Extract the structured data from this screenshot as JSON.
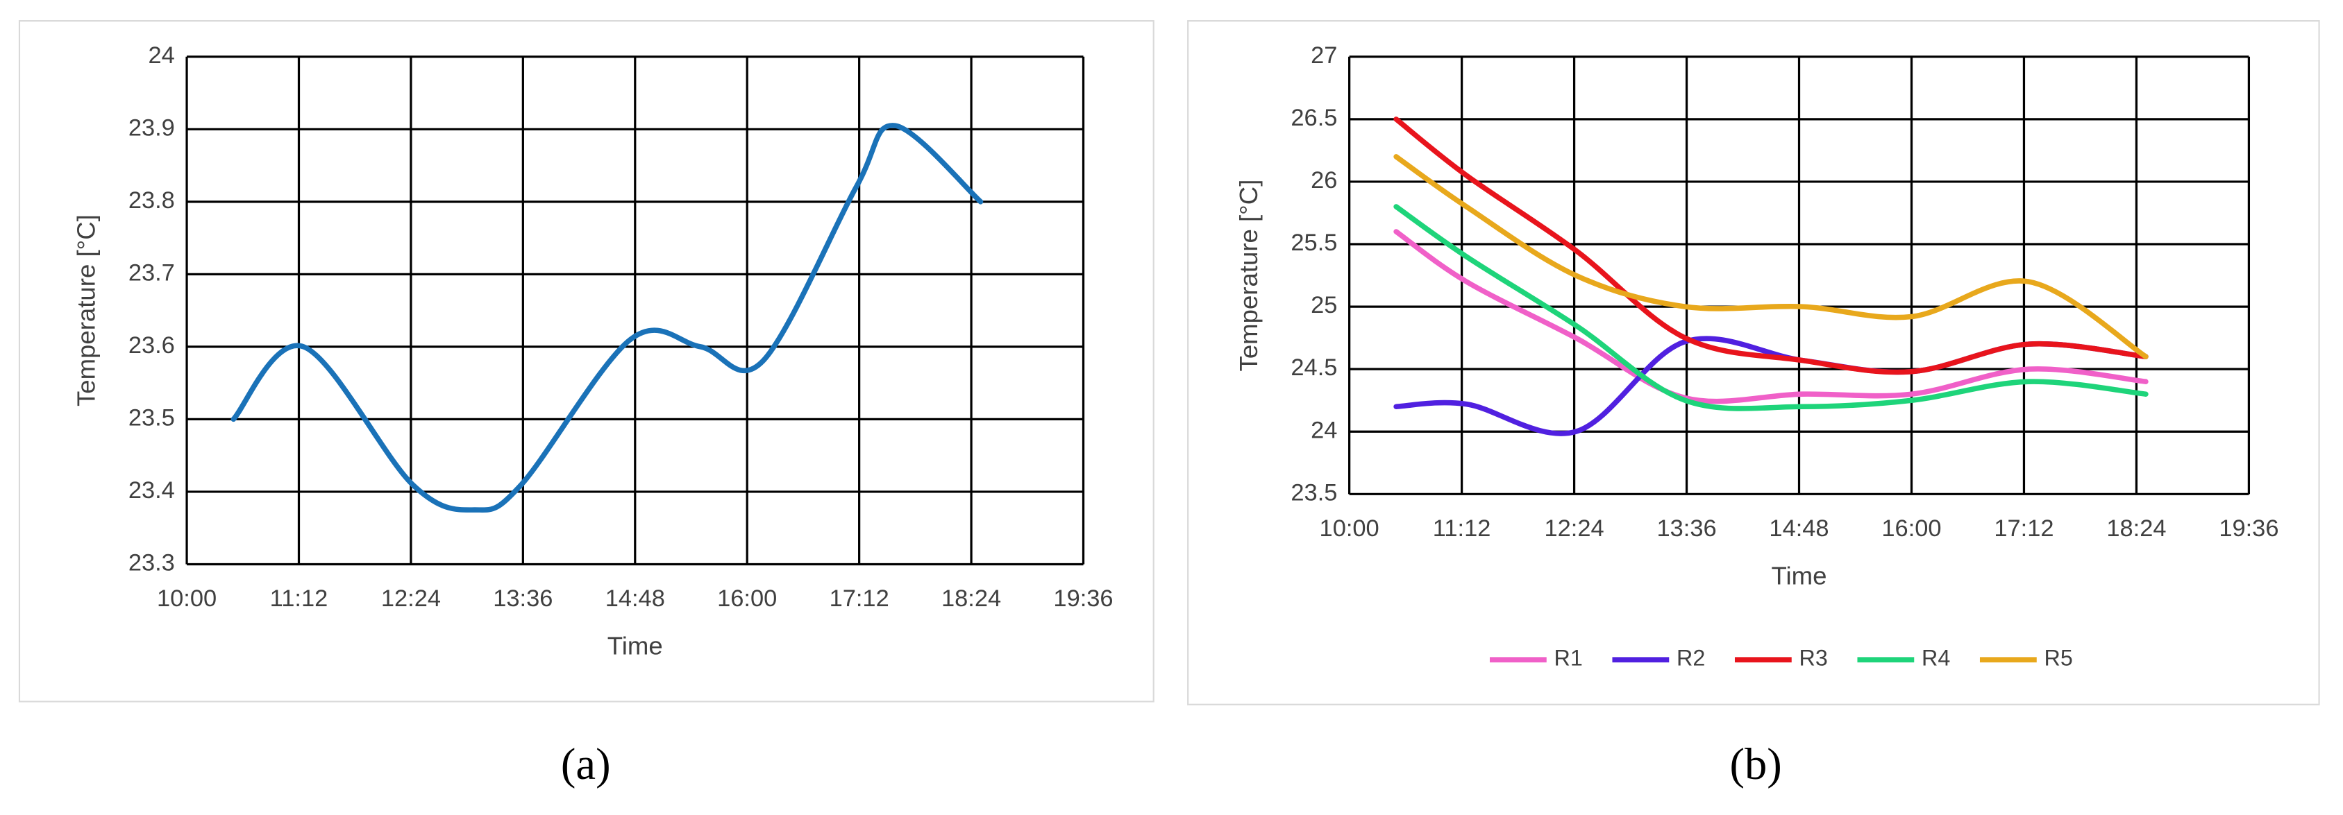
{
  "chart_data": [
    {
      "type": "line",
      "caption": "(a)",
      "xlabel": "Time",
      "ylabel": "Temperature [°C]",
      "x": [
        "10:30",
        "11:15",
        "12:25",
        "13:05",
        "13:35",
        "14:45",
        "15:30",
        "16:10",
        "17:10",
        "17:35",
        "18:30"
      ],
      "series": [
        {
          "name": null,
          "color": "#1a72b8",
          "values": [
            23.5,
            23.6,
            23.41,
            23.375,
            23.41,
            23.61,
            23.6,
            23.58,
            23.82,
            23.905,
            23.8
          ]
        }
      ],
      "xlim": [
        "10:00",
        "19:36"
      ],
      "xticks": [
        "10:00",
        "11:12",
        "12:24",
        "13:36",
        "14:48",
        "16:00",
        "17:12",
        "18:24",
        "19:36"
      ],
      "ylim": [
        23.3,
        24
      ],
      "yticks": [
        23.3,
        23.4,
        23.5,
        23.6,
        23.7,
        23.8,
        23.9,
        24
      ],
      "grid": true,
      "smooth": true
    },
    {
      "type": "line",
      "caption": "(b)",
      "xlabel": "Time",
      "ylabel": "Temperature [°C]",
      "x": [
        "10:30",
        "11:15",
        "12:25",
        "13:35",
        "14:50",
        "16:00",
        "17:15",
        "18:30"
      ],
      "series": [
        {
          "name": "R1",
          "color": "#f060c8",
          "values": [
            25.6,
            25.2,
            24.75,
            24.27,
            24.3,
            24.3,
            24.5,
            24.4
          ]
        },
        {
          "name": "R2",
          "color": "#5020e0",
          "values": [
            24.2,
            24.22,
            24.0,
            24.72,
            24.57,
            24.48,
            24.7,
            24.6
          ]
        },
        {
          "name": "R3",
          "color": "#e8141c",
          "values": [
            26.5,
            26.05,
            25.45,
            24.75,
            24.57,
            24.48,
            24.7,
            24.6
          ]
        },
        {
          "name": "R4",
          "color": "#1ed47a",
          "values": [
            25.8,
            25.4,
            24.85,
            24.25,
            24.2,
            24.25,
            24.4,
            24.3
          ]
        },
        {
          "name": "R5",
          "color": "#e8a81c",
          "values": [
            26.2,
            25.8,
            25.25,
            25.0,
            25.0,
            24.92,
            25.2,
            24.6
          ]
        }
      ],
      "xlim": [
        "10:00",
        "19:36"
      ],
      "xticks": [
        "10:00",
        "11:12",
        "12:24",
        "13:36",
        "14:48",
        "16:00",
        "17:12",
        "18:24",
        "19:36"
      ],
      "ylim": [
        23.5,
        27
      ],
      "yticks": [
        23.5,
        24,
        24.5,
        25,
        25.5,
        26,
        26.5,
        27
      ],
      "grid": true,
      "smooth": true,
      "legend": "bottom"
    }
  ]
}
